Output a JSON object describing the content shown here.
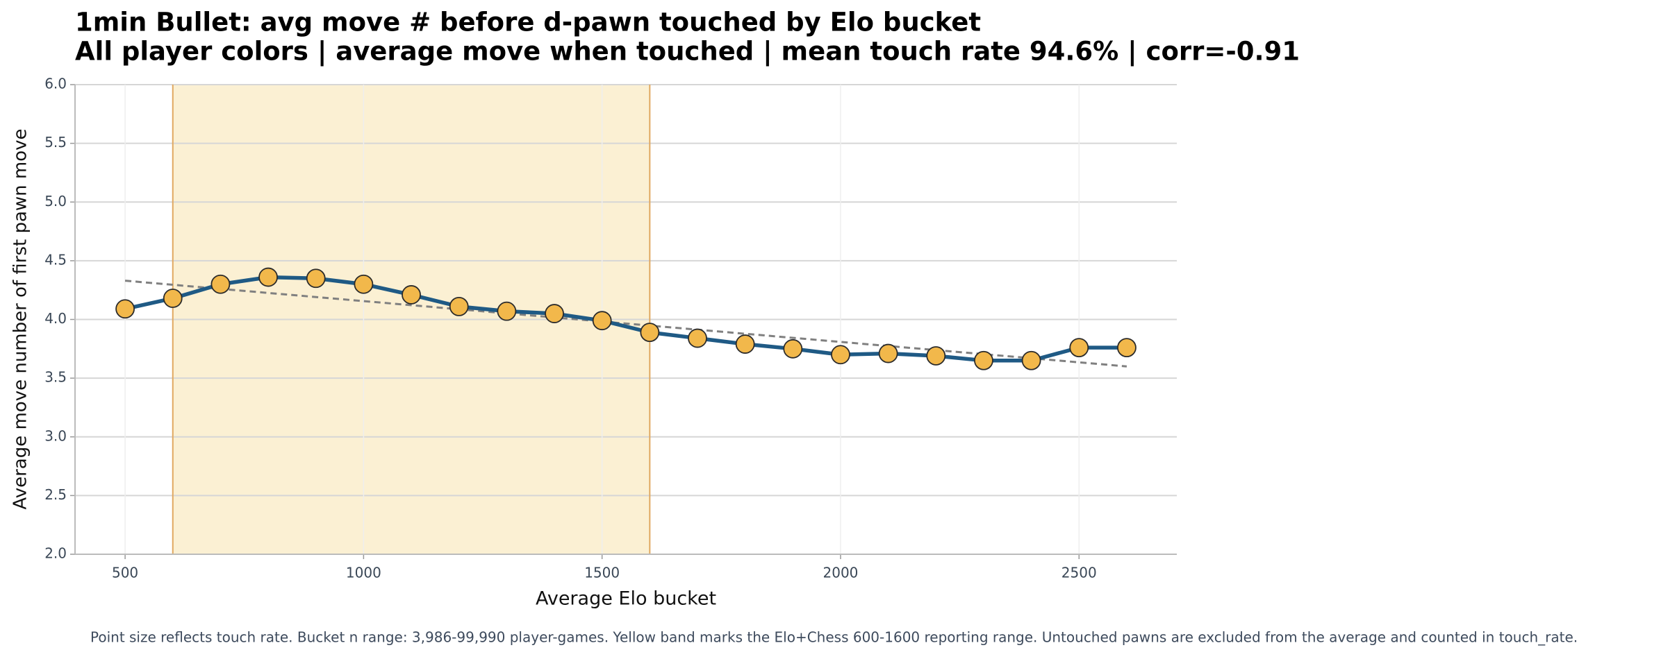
{
  "chart_data": {
    "type": "line",
    "title": "1min Bullet: avg move # before d-pawn touched by Elo bucket",
    "subtitle": "All player colors | average move when touched | mean touch rate 94.6% | corr=-0.91",
    "x_label": "Average Elo bucket",
    "y_label": "Average move number of first pawn move",
    "footnote": "Point size reflects touch rate. Bucket n range: 3,986-99,990 player-games. Yellow band marks the Elo+Chess 600-1600 reporting range. Untouched pawns are excluded from the average and counted in touch_rate.",
    "x": [
      500,
      600,
      700,
      800,
      900,
      1000,
      1100,
      1200,
      1300,
      1400,
      1500,
      1600,
      1700,
      1800,
      1900,
      2000,
      2100,
      2200,
      2300,
      2400,
      2500,
      2600
    ],
    "values": [
      4.09,
      4.18,
      4.3,
      4.36,
      4.35,
      4.3,
      4.21,
      4.11,
      4.07,
      4.05,
      3.99,
      3.89,
      3.84,
      3.79,
      3.75,
      3.7,
      3.71,
      3.69,
      3.65,
      3.65,
      3.76,
      3.76
    ],
    "color": "#1f5a85",
    "marker_color": "#f2b84b",
    "trend": {
      "x": [
        500,
        2600
      ],
      "values": [
        4.33,
        3.6
      ],
      "color": "#808080"
    },
    "band": {
      "x": [
        600,
        1600
      ],
      "color": "#fbf0d3",
      "edge_color": "#e0a860"
    },
    "xlim": [
      395,
      2705
    ],
    "ylim": [
      2.0,
      6.0
    ],
    "xticks": [
      500,
      1000,
      1500,
      2000,
      2500
    ],
    "yticks": [
      {
        "value": 2.0,
        "label": "2.0"
      },
      {
        "value": 2.5,
        "label": "2.5"
      },
      {
        "value": 3.0,
        "label": "3.0"
      },
      {
        "value": 3.5,
        "label": "3.5"
      },
      {
        "value": 4.0,
        "label": "4.0"
      },
      {
        "value": 4.5,
        "label": "4.5"
      },
      {
        "value": 5.0,
        "label": "5.0"
      },
      {
        "value": 5.5,
        "label": "5.5"
      },
      {
        "value": 6.0,
        "label": "6.0"
      }
    ],
    "grid": true
  }
}
